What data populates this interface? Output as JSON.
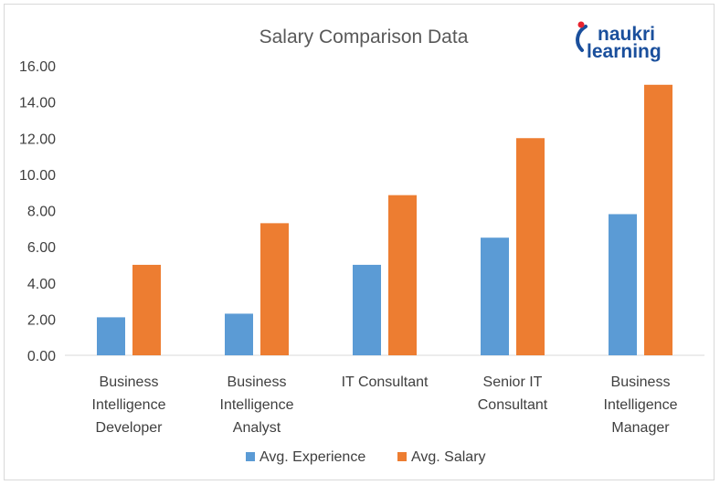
{
  "logo": {
    "line1": "naukri",
    "line2": "learning",
    "colors": {
      "text": "#1a4f9c",
      "accent": "#e8232e"
    }
  },
  "chart_data": {
    "type": "bar",
    "title": "Salary Comparison Data",
    "xlabel": "",
    "ylabel": "",
    "ylim": [
      0,
      16
    ],
    "ytick_step": 2,
    "ytick_labels": [
      "0.00",
      "2.00",
      "4.00",
      "6.00",
      "8.00",
      "10.00",
      "12.00",
      "14.00",
      "16.00"
    ],
    "grid": false,
    "legend_position": "bottom",
    "categories": [
      [
        "Business",
        "Intelligence",
        "Developer"
      ],
      [
        "Business",
        "Intelligence",
        "Analyst"
      ],
      [
        "IT Consultant"
      ],
      [
        "Senior IT",
        "Consultant"
      ],
      [
        "Business",
        "Intelligence",
        "Manager"
      ]
    ],
    "series": [
      {
        "name": "Avg. Experience",
        "color": "#5b9bd5",
        "values": [
          2.1,
          2.3,
          5.0,
          6.5,
          7.8
        ]
      },
      {
        "name": "Avg. Salary",
        "color": "#ed7d31",
        "values": [
          5.0,
          7.3,
          8.85,
          12.0,
          14.95
        ]
      }
    ]
  }
}
